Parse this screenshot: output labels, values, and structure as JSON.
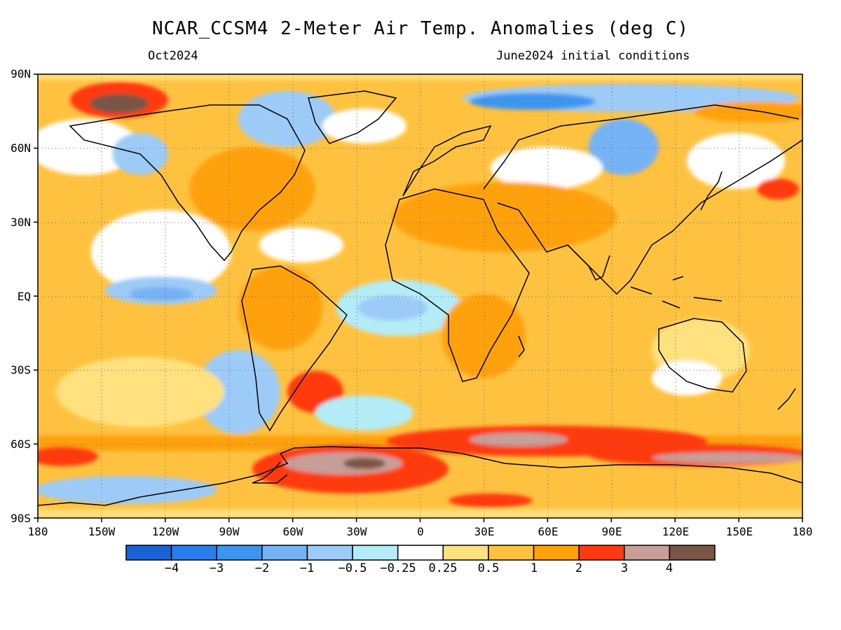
{
  "header": {
    "title": "NCAR_CCSM4 2-Meter Air Temp. Anomalies (deg C)",
    "valid_month": "Oct2024",
    "initial_conditions": "June2024 initial conditions"
  },
  "map": {
    "projection": "cylindrical-equidistant",
    "field": "2-meter air temperature anomaly",
    "lat_labels": [
      "90N",
      "60N",
      "30N",
      "EQ",
      "30S",
      "60S",
      "90S"
    ],
    "lon_labels": [
      "180",
      "150W",
      "120W",
      "90W",
      "60W",
      "30W",
      "0",
      "30E",
      "60E",
      "90E",
      "120E",
      "150E",
      "180"
    ],
    "gridlines": "dotted"
  },
  "colorbar": {
    "labels": [
      "−4",
      "−3",
      "−2",
      "−1",
      "−0.5",
      "−0.25",
      "0.25",
      "0.5",
      "1",
      "2",
      "3",
      "4"
    ],
    "colors": [
      "#1a62d6",
      "#2b7de9",
      "#3d95f0",
      "#76b3f5",
      "#9ccbf7",
      "#b3ecf6",
      "#ffffff",
      "#ffe17f",
      "#ffc240",
      "#ffa10a",
      "#ff3a10",
      "#c79e98",
      "#7a5545"
    ]
  }
}
